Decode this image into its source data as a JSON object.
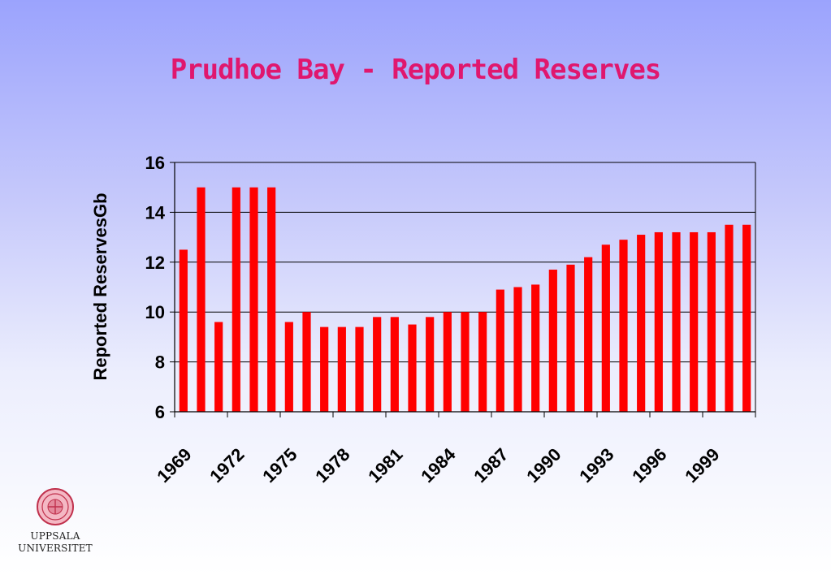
{
  "title": "Prudhoe Bay - Reported Reserves",
  "colors": {
    "title": "#e0176e",
    "bar": "#ff0000",
    "axis": "#000000"
  },
  "chart_data": {
    "type": "bar",
    "ylabel": "Reported ReservesGb",
    "xlabel": "",
    "ylim": [
      6,
      16
    ],
    "yticks": [
      6,
      8,
      10,
      12,
      14,
      16
    ],
    "grid": "horizontal",
    "categories": [
      "1969",
      "1970",
      "1971",
      "1972",
      "1973",
      "1974",
      "1975",
      "1976",
      "1977",
      "1978",
      "1979",
      "1980",
      "1981",
      "1982",
      "1983",
      "1984",
      "1985",
      "1986",
      "1987",
      "1988",
      "1989",
      "1990",
      "1991",
      "1992",
      "1993",
      "1994",
      "1995",
      "1996",
      "1997",
      "1998",
      "1999",
      "2000",
      "2001"
    ],
    "tick_labels": [
      "1969",
      "1972",
      "1975",
      "1978",
      "1981",
      "1984",
      "1987",
      "1990",
      "1993",
      "1996",
      "1999"
    ],
    "values": [
      12.5,
      15,
      9.6,
      15,
      15,
      15,
      9.6,
      10,
      9.4,
      9.4,
      9.4,
      9.8,
      9.8,
      9.5,
      9.8,
      10,
      10,
      10,
      10.9,
      11,
      11.1,
      11.7,
      11.9,
      12.2,
      12.7,
      12.9,
      13.1,
      13.2,
      13.2,
      13.2,
      13.2,
      13.5,
      13.5
    ]
  },
  "logo": {
    "line1": "UPPSALA",
    "line2": "UNIVERSITET"
  }
}
